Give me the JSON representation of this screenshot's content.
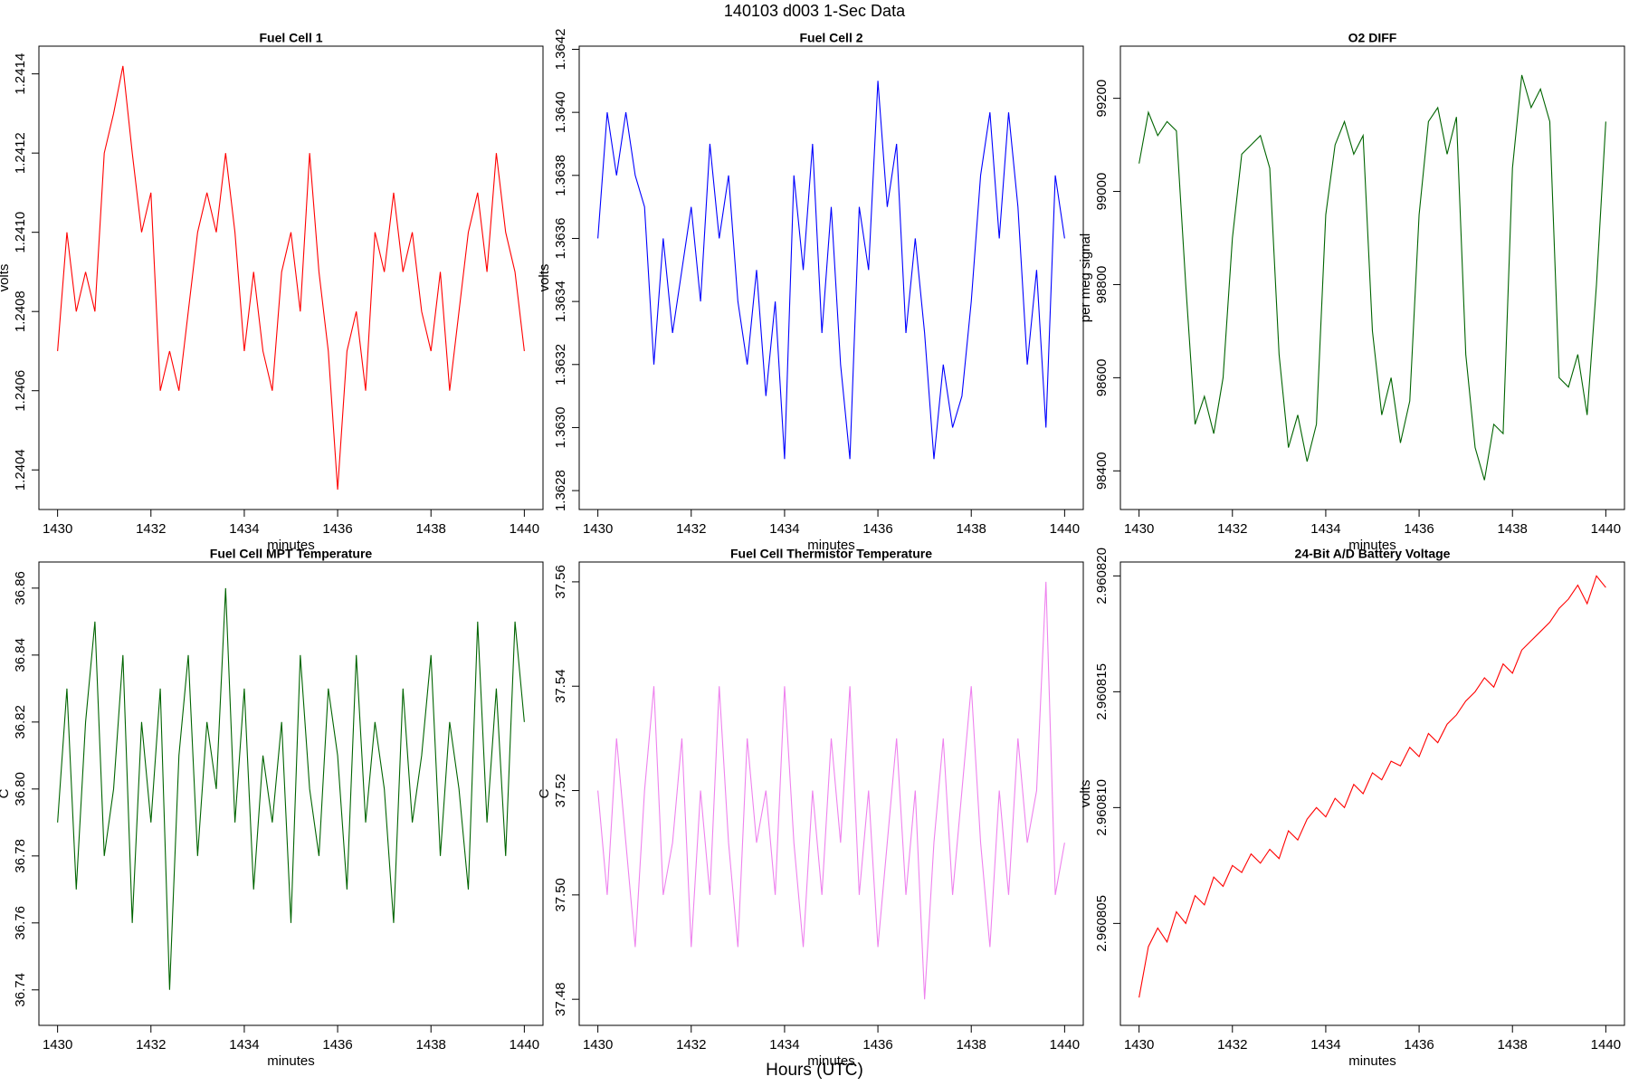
{
  "title": "140103   d003   1-Sec Data",
  "xlabel": "Hours (UTC)",
  "chart_data": [
    {
      "type": "line",
      "title": "Fuel Cell 1",
      "xlabel": "minutes",
      "ylabel": "volts",
      "color": "#ff0000",
      "x": [
        1430,
        1430.2,
        1430.4,
        1430.6,
        1430.8,
        1431,
        1431.2,
        1431.4,
        1431.6,
        1431.8,
        1432,
        1432.2,
        1432.4,
        1432.6,
        1432.8,
        1433,
        1433.2,
        1433.4,
        1433.6,
        1433.8,
        1434,
        1434.2,
        1434.4,
        1434.6,
        1434.8,
        1435,
        1435.2,
        1435.4,
        1435.6,
        1435.8,
        1436,
        1436.2,
        1436.4,
        1436.6,
        1436.8,
        1437,
        1437.2,
        1437.4,
        1437.6,
        1437.8,
        1438,
        1438.2,
        1438.4,
        1438.6,
        1438.8,
        1439,
        1439.2,
        1439.4,
        1439.6,
        1439.8,
        1440
      ],
      "values": [
        1.2407,
        1.241,
        1.2408,
        1.2409,
        1.2408,
        1.2412,
        1.2413,
        1.24142,
        1.2412,
        1.241,
        1.2411,
        1.2406,
        1.2407,
        1.2406,
        1.2408,
        1.241,
        1.2411,
        1.241,
        1.2412,
        1.241,
        1.2407,
        1.2409,
        1.2407,
        1.2406,
        1.2409,
        1.241,
        1.2408,
        1.2412,
        1.2409,
        1.2407,
        1.24035,
        1.2407,
        1.2408,
        1.2406,
        1.241,
        1.2409,
        1.2411,
        1.2409,
        1.241,
        1.2408,
        1.2407,
        1.2409,
        1.2406,
        1.2408,
        1.241,
        1.2411,
        1.2409,
        1.2412,
        1.241,
        1.2409,
        1.2407
      ],
      "xlim": [
        1429.6,
        1440.4
      ],
      "xticks": [
        1430,
        1432,
        1434,
        1436,
        1438,
        1440
      ],
      "ylim": [
        1.2403,
        1.24147
      ],
      "yticks": [
        1.2404,
        1.2406,
        1.2408,
        {
          "value": 1.241,
          "label": "1.2410"
        },
        1.2412,
        1.2414
      ]
    },
    {
      "type": "line",
      "title": "Fuel Cell 2",
      "xlabel": "minutes",
      "ylabel": "volts",
      "color": "#0000ff",
      "x": [
        1430,
        1430.2,
        1430.4,
        1430.6,
        1430.8,
        1431,
        1431.2,
        1431.4,
        1431.6,
        1431.8,
        1432,
        1432.2,
        1432.4,
        1432.6,
        1432.8,
        1433,
        1433.2,
        1433.4,
        1433.6,
        1433.8,
        1434,
        1434.2,
        1434.4,
        1434.6,
        1434.8,
        1435,
        1435.2,
        1435.4,
        1435.6,
        1435.8,
        1436,
        1436.2,
        1436.4,
        1436.6,
        1436.8,
        1437,
        1437.2,
        1437.4,
        1437.6,
        1437.8,
        1438,
        1438.2,
        1438.4,
        1438.6,
        1438.8,
        1439,
        1439.2,
        1439.4,
        1439.6,
        1439.8,
        1440
      ],
      "values": [
        1.3636,
        1.364,
        1.3638,
        1.364,
        1.3638,
        1.3637,
        1.3632,
        1.3636,
        1.3633,
        1.3635,
        1.3637,
        1.3634,
        1.3639,
        1.3636,
        1.3638,
        1.3634,
        1.3632,
        1.3635,
        1.3631,
        1.3634,
        1.3629,
        1.3638,
        1.3635,
        1.3639,
        1.3633,
        1.3637,
        1.3632,
        1.3629,
        1.3637,
        1.3635,
        1.3641,
        1.3637,
        1.3639,
        1.3633,
        1.3636,
        1.3633,
        1.3629,
        1.3632,
        1.363,
        1.3631,
        1.3634,
        1.3638,
        1.364,
        1.3636,
        1.364,
        1.3637,
        1.3632,
        1.3635,
        1.363,
        1.3638,
        1.3636
      ],
      "xlim": [
        1429.6,
        1440.4
      ],
      "xticks": [
        1430,
        1432,
        1434,
        1436,
        1438,
        1440
      ],
      "ylim": [
        1.36274,
        1.36421
      ],
      "yticks": [
        1.3628,
        {
          "value": 1.363,
          "label": "1.3630"
        },
        1.3632,
        1.3634,
        1.3636,
        1.3638,
        {
          "value": 1.364,
          "label": "1.3640"
        },
        1.3642
      ]
    },
    {
      "type": "line",
      "title": "O2 DIFF",
      "xlabel": "minutes",
      "ylabel": "per meg signal",
      "color": "#006400",
      "x": [
        1430,
        1430.2,
        1430.4,
        1430.6,
        1430.8,
        1431,
        1431.2,
        1431.4,
        1431.6,
        1431.8,
        1432,
        1432.2,
        1432.4,
        1432.6,
        1432.8,
        1433,
        1433.2,
        1433.4,
        1433.6,
        1433.8,
        1434,
        1434.2,
        1434.4,
        1434.6,
        1434.8,
        1435,
        1435.2,
        1435.4,
        1435.6,
        1435.8,
        1436,
        1436.2,
        1436.4,
        1436.6,
        1436.8,
        1437,
        1437.2,
        1437.4,
        1437.6,
        1437.8,
        1438,
        1438.2,
        1438.4,
        1438.6,
        1438.8,
        1439,
        1439.2,
        1439.4,
        1439.6,
        1439.8,
        1440
      ],
      "values": [
        99060,
        99170,
        99120,
        99150,
        99130,
        98800,
        98500,
        98560,
        98480,
        98600,
        98900,
        99080,
        99100,
        99120,
        99050,
        98650,
        98450,
        98520,
        98420,
        98500,
        98950,
        99100,
        99150,
        99080,
        99120,
        98700,
        98520,
        98600,
        98460,
        98550,
        98950,
        99150,
        99180,
        99080,
        99160,
        98650,
        98450,
        98380,
        98500,
        98480,
        99050,
        99250,
        99180,
        99220,
        99150,
        98600,
        98580,
        98650,
        98520,
        98800,
        99150
      ],
      "xlim": [
        1429.6,
        1440.4
      ],
      "xticks": [
        1430,
        1432,
        1434,
        1436,
        1438,
        1440
      ],
      "ylim": [
        98317,
        99312
      ],
      "yticks": [
        98400,
        98600,
        98800,
        99000,
        99200
      ]
    },
    {
      "type": "line",
      "title": "Fuel Cell MPT Temperature",
      "xlabel": "minutes",
      "ylabel": "C",
      "color": "#006400",
      "x": [
        1430,
        1430.2,
        1430.4,
        1430.6,
        1430.8,
        1431,
        1431.2,
        1431.4,
        1431.6,
        1431.8,
        1432,
        1432.2,
        1432.4,
        1432.6,
        1432.8,
        1433,
        1433.2,
        1433.4,
        1433.6,
        1433.8,
        1434,
        1434.2,
        1434.4,
        1434.6,
        1434.8,
        1435,
        1435.2,
        1435.4,
        1435.6,
        1435.8,
        1436,
        1436.2,
        1436.4,
        1436.6,
        1436.8,
        1437,
        1437.2,
        1437.4,
        1437.6,
        1437.8,
        1438,
        1438.2,
        1438.4,
        1438.6,
        1438.8,
        1439,
        1439.2,
        1439.4,
        1439.6,
        1439.8,
        1440
      ],
      "values": [
        36.79,
        36.83,
        36.77,
        36.82,
        36.85,
        36.78,
        36.8,
        36.84,
        36.76,
        36.82,
        36.79,
        36.83,
        36.74,
        36.81,
        36.84,
        36.78,
        36.82,
        36.8,
        36.86,
        36.79,
        36.83,
        36.77,
        36.81,
        36.79,
        36.82,
        36.76,
        36.84,
        36.8,
        36.78,
        36.83,
        36.81,
        36.77,
        36.84,
        36.79,
        36.82,
        36.8,
        36.76,
        36.83,
        36.79,
        36.81,
        36.84,
        36.78,
        36.82,
        36.8,
        36.77,
        36.85,
        36.79,
        36.83,
        36.78,
        36.85,
        36.82
      ],
      "xlim": [
        1429.6,
        1440.4
      ],
      "xticks": [
        1430,
        1432,
        1434,
        1436,
        1438,
        1440
      ],
      "ylim": [
        36.7294,
        36.8678
      ],
      "yticks": [
        36.74,
        36.76,
        36.78,
        {
          "value": 36.8,
          "label": "36.80"
        },
        36.82,
        36.84,
        36.86
      ]
    },
    {
      "type": "line",
      "title": "Fuel Cell Thermistor Temperature",
      "xlabel": "minutes",
      "ylabel": "C",
      "color": "#ee82ee",
      "x": [
        1430,
        1430.2,
        1430.4,
        1430.6,
        1430.8,
        1431,
        1431.2,
        1431.4,
        1431.6,
        1431.8,
        1432,
        1432.2,
        1432.4,
        1432.6,
        1432.8,
        1433,
        1433.2,
        1433.4,
        1433.6,
        1433.8,
        1434,
        1434.2,
        1434.4,
        1434.6,
        1434.8,
        1435,
        1435.2,
        1435.4,
        1435.6,
        1435.8,
        1436,
        1436.2,
        1436.4,
        1436.6,
        1436.8,
        1437,
        1437.2,
        1437.4,
        1437.6,
        1437.8,
        1438,
        1438.2,
        1438.4,
        1438.6,
        1438.8,
        1439,
        1439.2,
        1439.4,
        1439.6,
        1439.8,
        1440
      ],
      "values": [
        37.52,
        37.5,
        37.53,
        37.51,
        37.49,
        37.52,
        37.54,
        37.5,
        37.51,
        37.53,
        37.49,
        37.52,
        37.5,
        37.54,
        37.51,
        37.49,
        37.53,
        37.51,
        37.52,
        37.5,
        37.54,
        37.51,
        37.49,
        37.52,
        37.5,
        37.53,
        37.51,
        37.54,
        37.5,
        37.52,
        37.49,
        37.51,
        37.53,
        37.5,
        37.52,
        37.48,
        37.51,
        37.53,
        37.5,
        37.52,
        37.54,
        37.51,
        37.49,
        37.52,
        37.5,
        37.53,
        37.51,
        37.52,
        37.56,
        37.5,
        37.51
      ],
      "xlim": [
        1429.6,
        1440.4
      ],
      "xticks": [
        1430,
        1432,
        1434,
        1436,
        1438,
        1440
      ],
      "ylim": [
        37.475,
        37.5638
      ],
      "yticks": [
        37.48,
        {
          "value": 37.5,
          "label": "37.50"
        },
        37.52,
        37.54,
        37.56
      ]
    },
    {
      "type": "line",
      "title": "24-Bit A/D Battery Voltage",
      "xlabel": "minutes",
      "ylabel": "volts",
      "color": "#ff0000",
      "x": [
        1430,
        1430.2,
        1430.4,
        1430.6,
        1430.8,
        1431,
        1431.2,
        1431.4,
        1431.6,
        1431.8,
        1432,
        1432.2,
        1432.4,
        1432.6,
        1432.8,
        1433,
        1433.2,
        1433.4,
        1433.6,
        1433.8,
        1434,
        1434.2,
        1434.4,
        1434.6,
        1434.8,
        1435,
        1435.2,
        1435.4,
        1435.6,
        1435.8,
        1436,
        1436.2,
        1436.4,
        1436.6,
        1436.8,
        1437,
        1437.2,
        1437.4,
        1437.6,
        1437.8,
        1438,
        1438.2,
        1438.4,
        1438.6,
        1438.8,
        1439,
        1439.2,
        1439.4,
        1439.6,
        1439.8,
        1440
      ],
      "values": [
        2.9608018,
        2.960804,
        2.9608048,
        2.9608042,
        2.9608055,
        2.960805,
        2.9608062,
        2.9608058,
        2.960807,
        2.9608066,
        2.9608075,
        2.9608072,
        2.960808,
        2.9608076,
        2.9608082,
        2.9608078,
        2.960809,
        2.9608086,
        2.9608095,
        2.96081,
        2.9608096,
        2.9608104,
        2.96081,
        2.960811,
        2.9608106,
        2.9608115,
        2.9608112,
        2.960812,
        2.9608118,
        2.9608126,
        2.9608122,
        2.9608132,
        2.9608128,
        2.9608136,
        2.960814,
        2.9608146,
        2.960815,
        2.9608156,
        2.9608152,
        2.9608162,
        2.9608158,
        2.9608168,
        2.9608172,
        2.9608176,
        2.960818,
        2.9608186,
        2.960819,
        2.9608196,
        2.9608188,
        2.96082,
        2.9608195
      ],
      "xlim": [
        1429.6,
        1440.4
      ],
      "xticks": [
        1430,
        1432,
        1434,
        1436,
        1438,
        1440
      ],
      "ylim": [
        2.9608006,
        2.9608206
      ],
      "yticks": [
        2.960805,
        {
          "value": 2.96081,
          "label": "2.960810"
        },
        2.960815,
        {
          "value": 2.96082,
          "label": "2.960820"
        }
      ]
    }
  ]
}
